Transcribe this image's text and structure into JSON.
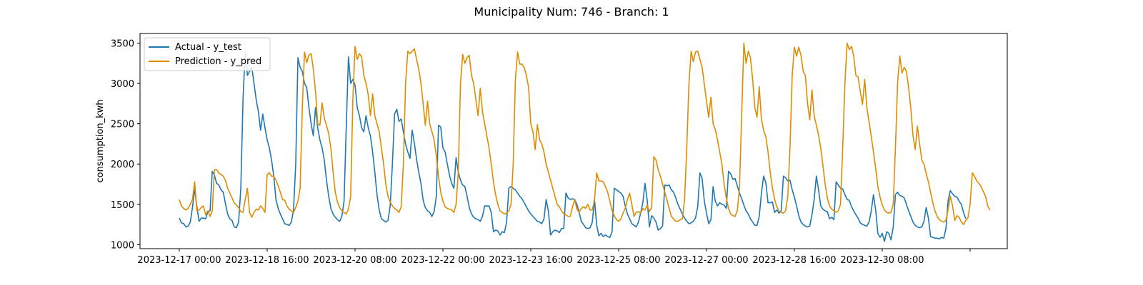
{
  "chart_data": {
    "type": "line",
    "title": "Municipality Num: 746 - Branch: 1",
    "xlabel": "",
    "ylabel": "consumption_kwh",
    "ylim": [
      950,
      3620
    ],
    "yticks": [
      1000,
      1500,
      2000,
      2500,
      3000,
      3500
    ],
    "x_start": "2023-12-17 00:00",
    "x_step_hours": 1,
    "xticks": [
      {
        "label": "2023-12-17 00:00",
        "hour": 0
      },
      {
        "label": "2023-12-18 16:00",
        "hour": 40
      },
      {
        "label": "2023-12-20 08:00",
        "hour": 80
      },
      {
        "label": "2023-12-22 00:00",
        "hour": 120
      },
      {
        "label": "2023-12-23 16:00",
        "hour": 160
      },
      {
        "label": "2023-12-25 08:00",
        "hour": 200
      },
      {
        "label": "2023-12-27 00:00",
        "hour": 240
      },
      {
        "label": "2023-12-28 16:00",
        "hour": 280
      },
      {
        "label": "2023-12-30 08:00",
        "hour": 320
      },
      {
        "label": "",
        "hour": 360
      }
    ],
    "legend": {
      "position": "top-left"
    },
    "grid": false,
    "series": [
      {
        "name": "Actual - y_test",
        "color": "#1f77b4",
        "values": [
          1330,
          1270,
          1260,
          1220,
          1230,
          1280,
          1460,
          1690,
          1470,
          1290,
          1330,
          1330,
          1320,
          1410,
          1420,
          1910,
          1860,
          1760,
          1740,
          1680,
          1650,
          1510,
          1380,
          1320,
          1300,
          1220,
          1210,
          1280,
          1700,
          2800,
          3400,
          3100,
          3150,
          3200,
          3000,
          2800,
          2650,
          2420,
          2620,
          2450,
          2300,
          2200,
          2050,
          1850,
          1560,
          1450,
          1380,
          1320,
          1260,
          1250,
          1240,
          1280,
          1430,
          2000,
          3320,
          3200,
          3150,
          3000,
          2950,
          2700,
          2500,
          2350,
          2700,
          2450,
          2300,
          2200,
          2050,
          1800,
          1600,
          1450,
          1380,
          1340,
          1310,
          1290,
          1350,
          1540,
          2460,
          3330,
          3000,
          3050,
          2980,
          2700,
          2600,
          2450,
          2400,
          2600,
          2450,
          2350,
          2150,
          1900,
          1620,
          1430,
          1320,
          1300,
          1280,
          1300,
          1480,
          2000,
          2620,
          2680,
          2530,
          2560,
          2400,
          2250,
          2150,
          2070,
          2420,
          2260,
          2060,
          1900,
          1760,
          1550,
          1460,
          1420,
          1400,
          1350,
          1410,
          1600,
          2480,
          2460,
          2200,
          2150,
          2000,
          1860,
          1760,
          1700,
          2080,
          1900,
          1800,
          1740,
          1720,
          1600,
          1460,
          1380,
          1340,
          1320,
          1310,
          1290,
          1350,
          1480,
          1480,
          1480,
          1400,
          1160,
          1180,
          1170,
          1120,
          1160,
          1150,
          1280,
          1700,
          1720,
          1700,
          1680,
          1640,
          1600,
          1570,
          1520,
          1470,
          1420,
          1380,
          1350,
          1320,
          1290,
          1280,
          1260,
          1320,
          1560,
          1420,
          1120,
          1160,
          1180,
          1170,
          1150,
          1200,
          1200,
          1640,
          1580,
          1560,
          1570,
          1560,
          1500,
          1400,
          1290,
          1250,
          1210,
          1200,
          1210,
          1280,
          1560,
          1240,
          1110,
          1140,
          1100,
          1120,
          1100,
          1090,
          1160,
          1700,
          1680,
          1660,
          1640,
          1600,
          1480,
          1380,
          1320,
          1260,
          1240,
          1220,
          1280,
          1390,
          1520,
          1760,
          1550,
          1220,
          1360,
          1330,
          1280,
          1180,
          1200,
          1230,
          1740,
          1730,
          1740,
          1680,
          1650,
          1580,
          1500,
          1440,
          1380,
          1330,
          1290,
          1260,
          1270,
          1290,
          1330,
          1470,
          1890,
          1820,
          1540,
          1390,
          1260,
          1310,
          1720,
          1540,
          1480,
          1520,
          1500,
          1490,
          1450,
          1910,
          1880,
          1810,
          1820,
          1730,
          1640,
          1570,
          1490,
          1420,
          1380,
          1320,
          1280,
          1240,
          1240,
          1350,
          1640,
          1850,
          1770,
          1520,
          1520,
          1530,
          1400,
          1430,
          1390,
          1420,
          1850,
          1830,
          1790,
          1800,
          1680,
          1590,
          1480,
          1360,
          1280,
          1250,
          1230,
          1220,
          1230,
          1370,
          1560,
          1850,
          1680,
          1480,
          1440,
          1420,
          1410,
          1320,
          1340,
          1310,
          1780,
          1740,
          1700,
          1690,
          1620,
          1560,
          1550,
          1470,
          1420,
          1370,
          1330,
          1270,
          1250,
          1240,
          1230,
          1280,
          1420,
          1620,
          1430,
          1140,
          1090,
          1140,
          1040,
          1160,
          1140,
          1060,
          1220,
          1620,
          1650,
          1610,
          1600,
          1580,
          1500,
          1420,
          1350,
          1280,
          1240,
          1220,
          1210,
          1220,
          1290,
          1460,
          1330,
          1100,
          1090,
          1080,
          1080,
          1070,
          1090,
          1080,
          1200,
          1550,
          1670,
          1630,
          1600,
          1590,
          1540,
          1500,
          1400,
          1320
        ]
      },
      {
        "name": "Prediction - y_pred",
        "color": "#e08c00",
        "values": [
          1560,
          1480,
          1450,
          1430,
          1450,
          1500,
          1560,
          1780,
          1420,
          1430,
          1460,
          1480,
          1370,
          1420,
          1350,
          1420,
          1930,
          1930,
          1890,
          1870,
          1850,
          1800,
          1700,
          1640,
          1580,
          1520,
          1490,
          1460,
          1410,
          1400,
          1560,
          1700,
          1400,
          1340,
          1400,
          1440,
          1430,
          1480,
          1450,
          1400,
          1870,
          1890,
          1850,
          1850,
          1800,
          1730,
          1650,
          1560,
          1550,
          1480,
          1440,
          1420,
          1400,
          1460,
          1540,
          1700,
          2700,
          3390,
          3260,
          3350,
          3370,
          3180,
          2900,
          2500,
          2480,
          2760,
          2570,
          2480,
          2380,
          2200,
          1900,
          1650,
          1530,
          1460,
          1420,
          1400,
          1380,
          1440,
          1600,
          2800,
          3460,
          3300,
          3370,
          3330,
          3100,
          3000,
          2860,
          2600,
          2870,
          2600,
          2500,
          2400,
          2200,
          2000,
          1750,
          1600,
          1530,
          1480,
          1450,
          1430,
          1400,
          1470,
          2000,
          3000,
          3400,
          3370,
          3400,
          3430,
          3300,
          3180,
          3000,
          2750,
          2480,
          2780,
          2500,
          2400,
          2300,
          2100,
          1850,
          1650,
          1540,
          1470,
          1450,
          1440,
          1430,
          1400,
          1500,
          1900,
          3000,
          3360,
          3250,
          3320,
          3350,
          3100,
          3000,
          2800,
          2600,
          2940,
          2650,
          2500,
          2350,
          2200,
          2000,
          1780,
          1620,
          1500,
          1420,
          1400,
          1380,
          1390,
          1420,
          1500,
          2000,
          3050,
          3390,
          3240,
          3240,
          3200,
          3100,
          2950,
          2500,
          2400,
          2180,
          2490,
          2300,
          2250,
          2150,
          2000,
          1900,
          1800,
          1700,
          1600,
          1500,
          1470,
          1420,
          1380,
          1370,
          1350,
          1350,
          1470,
          1560,
          1440,
          1400,
          1450,
          1470,
          1450,
          1500,
          1430,
          1430,
          1550,
          1890,
          1790,
          1790,
          1780,
          1720,
          1650,
          1540,
          1420,
          1360,
          1310,
          1290,
          1320,
          1390,
          1450,
          1560,
          1640,
          1500,
          1350,
          1400,
          1410,
          1390,
          1450,
          1430,
          1490,
          1410,
          1460,
          2090,
          2050,
          1930,
          1850,
          1750,
          1650,
          1550,
          1450,
          1350,
          1320,
          1290,
          1290,
          1310,
          1320,
          1550,
          2200,
          3000,
          3400,
          3270,
          3390,
          3400,
          3300,
          3200,
          2990,
          2780,
          2580,
          2830,
          2500,
          2430,
          2300,
          2150,
          2000,
          1750,
          1580,
          1450,
          1380,
          1360,
          1350,
          1420,
          1700,
          2600,
          3500,
          3250,
          3400,
          3320,
          3050,
          2700,
          2580,
          2960,
          2550,
          2420,
          2340,
          2150,
          1900,
          1700,
          1560,
          1470,
          1420,
          1400,
          1390,
          1420,
          1600,
          2200,
          3100,
          3450,
          3340,
          3450,
          3350,
          3150,
          3100,
          2750,
          2550,
          2920,
          2600,
          2480,
          2360,
          2200,
          1980,
          1750,
          1580,
          1480,
          1440,
          1420,
          1400,
          1420,
          1500,
          2200,
          3000,
          3500,
          3420,
          3460,
          3340,
          3100,
          3080,
          2900,
          2740,
          3050,
          2700,
          2520,
          2340,
          2150,
          1950,
          1720,
          1590,
          1490,
          1430,
          1400,
          1390,
          1400,
          1500,
          2200,
          3020,
          3340,
          3130,
          3200,
          3150,
          2950,
          2690,
          2350,
          2180,
          2470,
          2250,
          2050,
          2000,
          1880,
          1780,
          1650,
          1520,
          1420,
          1350,
          1310,
          1290,
          1280,
          1300,
          1440,
          1600,
          1480,
          1300,
          1360,
          1340,
          1280,
          1250,
          1300,
          1330,
          1500,
          1890,
          1850,
          1790,
          1760,
          1720,
          1660,
          1600,
          1480,
          1430
        ]
      }
    ]
  }
}
